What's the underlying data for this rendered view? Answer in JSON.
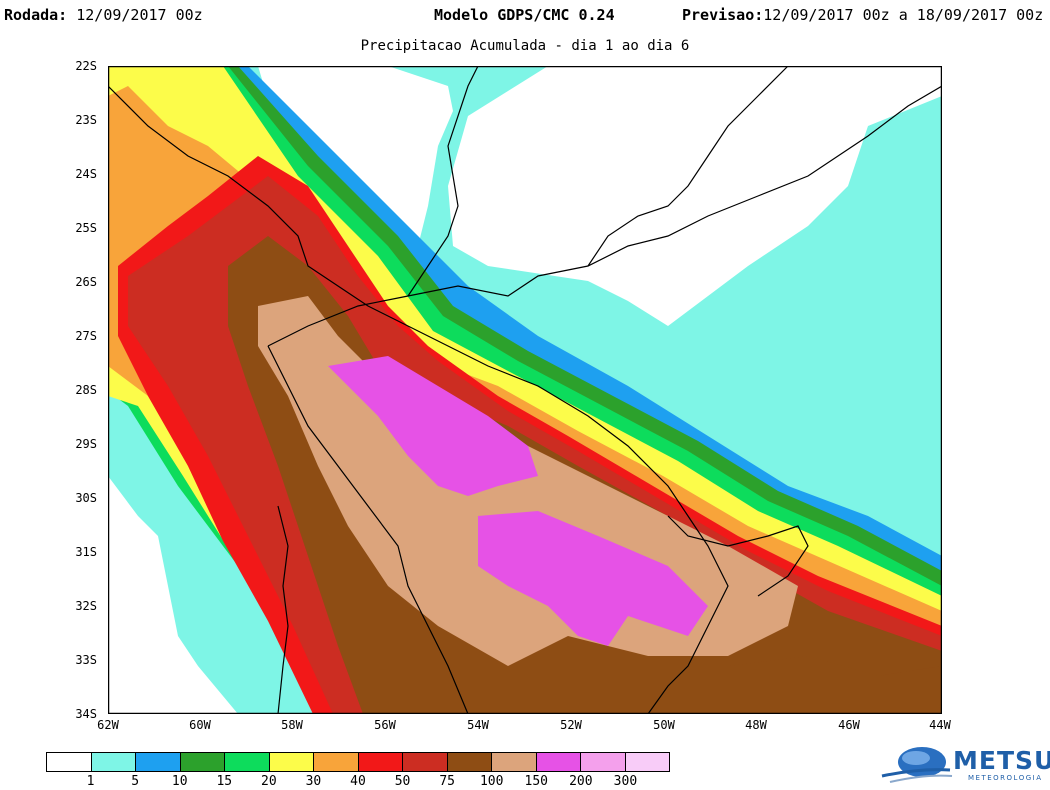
{
  "header": {
    "run_label": "Rodada:",
    "run_value": "12/09/2017 00z",
    "model": "Modelo GDPS/CMC 0.24",
    "forecast_label": "Previsao:",
    "forecast_value": "12/09/2017 00z a 18/09/2017 00z"
  },
  "subtitle": "Precipitacao Acumulada - dia 1 ao dia 6",
  "axes": {
    "lat_labels": [
      "22S",
      "23S",
      "24S",
      "25S",
      "26S",
      "27S",
      "28S",
      "29S",
      "30S",
      "31S",
      "32S",
      "33S",
      "34S"
    ],
    "lon_labels": [
      "62W",
      "60W",
      "58W",
      "56W",
      "54W",
      "52W",
      "50W",
      "48W",
      "46W",
      "44W"
    ],
    "lat_range": [
      -34,
      -22
    ],
    "lon_range": [
      -62,
      -44
    ]
  },
  "legend": {
    "labels": [
      "1",
      "5",
      "10",
      "15",
      "20",
      "30",
      "40",
      "50",
      "75",
      "100",
      "150",
      "200",
      "300"
    ],
    "colors": [
      "#ffffff",
      "#7ef5e6",
      "#1ea0f0",
      "#2ca12c",
      "#0ddc5c",
      "#fcfc4a",
      "#f8a43a",
      "#f21818",
      "#cc2d22",
      "#8e4d14",
      "#dca47c",
      "#e652e6",
      "#f4a0ec",
      "#f8ccf8"
    ]
  },
  "logo": {
    "name": "METSUL",
    "tagline": "METEOROLOGIA"
  }
}
